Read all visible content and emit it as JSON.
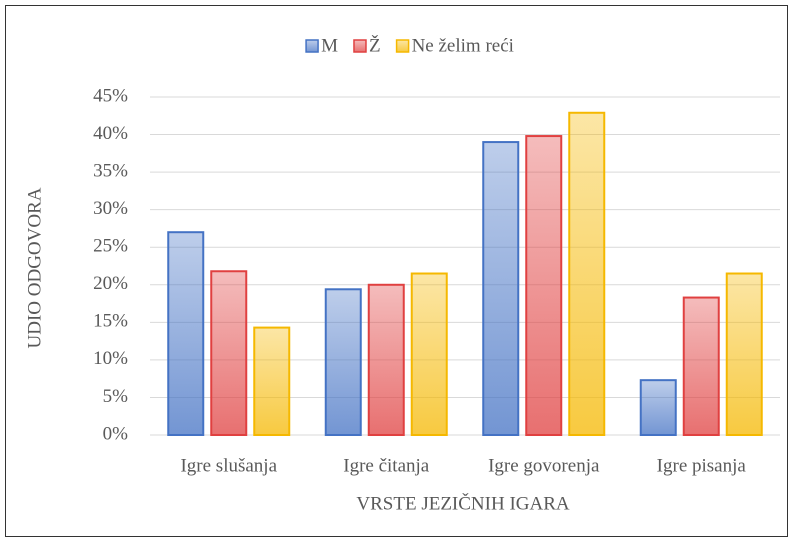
{
  "chart_data": {
    "type": "bar",
    "y_axis_label": "UDIO ODGOVORA",
    "x_axis_label": "VRSTE JEZIČNIH IGARA",
    "categories": [
      "Igre slušanja",
      "Igre čitanja",
      "Igre govorenja",
      "Igre pisanja"
    ],
    "series": [
      {
        "name": "M",
        "color": "#4472c4",
        "values": [
          27,
          19.4,
          39,
          7.3
        ]
      },
      {
        "name": "Ž",
        "color": "#e04040",
        "values": [
          21.8,
          20,
          39.8,
          18.3
        ]
      },
      {
        "name": "Ne želim reći",
        "color": "#f5b800",
        "values": [
          14.3,
          21.5,
          42.9,
          21.5
        ]
      }
    ],
    "ylim": [
      0,
      45
    ],
    "yticks": [
      {
        "value": 0,
        "label": "0%"
      },
      {
        "value": 5,
        "label": "5%"
      },
      {
        "value": 10,
        "label": "10%"
      },
      {
        "value": 15,
        "label": "15%"
      },
      {
        "value": 20,
        "label": "20%"
      },
      {
        "value": 25,
        "label": "25%"
      },
      {
        "value": 30,
        "label": "30%"
      },
      {
        "value": 35,
        "label": "35%"
      },
      {
        "value": 40,
        "label": "40%"
      },
      {
        "value": 45,
        "label": "45%"
      }
    ],
    "grid": true,
    "legend": "top"
  }
}
